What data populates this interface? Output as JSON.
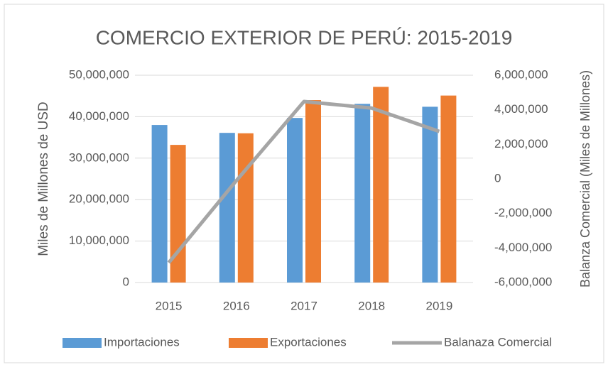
{
  "chart_data": {
    "type": "bar_line",
    "title": "COMERCIO EXTERIOR DE PERÚ: 2015-2019",
    "y_label": "Miles de Millones de USD",
    "y2_label": "Balanza Comercial (Miles de Millones)",
    "categories": [
      "2015",
      "2016",
      "2017",
      "2018",
      "2019"
    ],
    "series": [
      {
        "name": "Importaciones",
        "color": "#5b9bd5",
        "kind": "bar",
        "values": [
          38000000,
          36100000,
          39700000,
          43100000,
          42400000
        ]
      },
      {
        "name": "Exportaciones",
        "color": "#ed7d31",
        "kind": "bar",
        "values": [
          33200000,
          36000000,
          44000000,
          47200000,
          45100000
        ]
      },
      {
        "name": "Balanaza Comercial",
        "color": "#a5a5a5",
        "kind": "line",
        "axis": "y2",
        "values": [
          -4850000,
          -100000,
          4480000,
          4100000,
          2750000
        ]
      }
    ],
    "ylim": [
      0,
      50000000
    ],
    "yticks": [
      0,
      {
        "value": 10000000,
        "label": "10,000,000"
      },
      {
        "value": 20000000,
        "label": "20,000,000"
      },
      {
        "value": 30000000,
        "label": "30,000,000"
      },
      {
        "value": 40000000,
        "label": "40,000,000"
      },
      {
        "value": 50000000,
        "label": "50,000,000"
      }
    ],
    "y2lim": [
      -6000000,
      6000000
    ],
    "y2ticks": [
      {
        "value": -6000000,
        "label": "-6,000,000"
      },
      {
        "value": -4000000,
        "label": "-4,000,000"
      },
      {
        "value": -2000000,
        "label": "-2,000,000"
      },
      0,
      {
        "value": 2000000,
        "label": "2,000,000"
      },
      {
        "value": 4000000,
        "label": "4,000,000"
      },
      {
        "value": 6000000,
        "label": "6,000,000"
      }
    ],
    "grid": true,
    "legend": "bottom"
  }
}
